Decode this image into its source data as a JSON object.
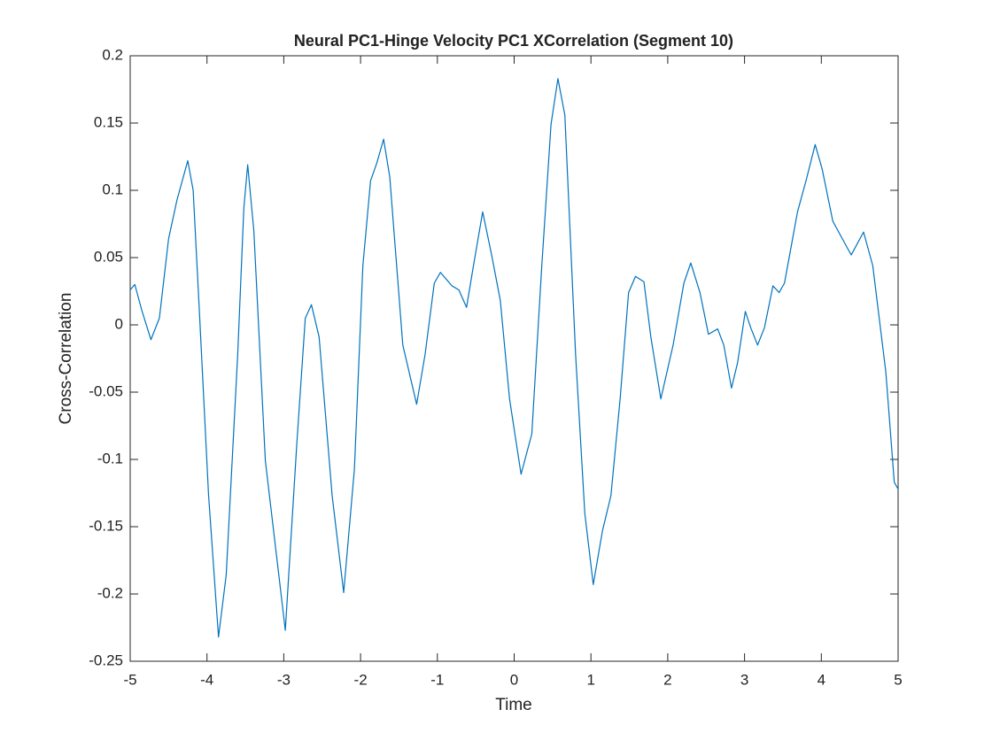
{
  "chart_data": {
    "type": "line",
    "title": "Neural PC1-Hinge Velocity PC1 XCorrelation (Segment 10)",
    "x_label": "Time",
    "y_label": "Cross-Correlation",
    "x": [
      -5.0,
      -4.94,
      -4.85,
      -4.73,
      -4.62,
      -4.5,
      -4.39,
      -4.25,
      -4.18,
      -4.1,
      -3.98,
      -3.85,
      -3.75,
      -3.6,
      -3.52,
      -3.47,
      -3.39,
      -3.24,
      -2.98,
      -2.83,
      -2.72,
      -2.64,
      -2.54,
      -2.37,
      -2.22,
      -2.08,
      -1.97,
      -1.87,
      -1.79,
      -1.7,
      -1.62,
      -1.45,
      -1.27,
      -1.16,
      -1.04,
      -0.96,
      -0.81,
      -0.72,
      -0.62,
      -0.53,
      -0.41,
      -0.29,
      -0.18,
      -0.06,
      0.09,
      0.23,
      0.36,
      0.48,
      0.57,
      0.66,
      0.8,
      0.92,
      1.03,
      1.15,
      1.26,
      1.38,
      1.49,
      1.58,
      1.69,
      1.78,
      1.91,
      2.07,
      2.21,
      2.3,
      2.42,
      2.53,
      2.65,
      2.73,
      2.83,
      2.91,
      3.01,
      3.08,
      3.17,
      3.26,
      3.37,
      3.45,
      3.52,
      3.69,
      3.8,
      3.92,
      4.01,
      4.15,
      4.35,
      4.39,
      4.55,
      4.67,
      4.84,
      4.95,
      5.0
    ],
    "series": [
      {
        "color": "#0072bd",
        "values": [
          0.026,
          0.03,
          0.011,
          -0.011,
          0.005,
          0.064,
          0.093,
          0.122,
          0.1,
          0.011,
          -0.126,
          -0.232,
          -0.186,
          -0.022,
          0.087,
          0.119,
          0.07,
          -0.101,
          -0.227,
          -0.088,
          0.005,
          0.015,
          -0.009,
          -0.127,
          -0.199,
          -0.107,
          0.044,
          0.107,
          0.12,
          0.138,
          0.11,
          -0.015,
          -0.059,
          -0.022,
          0.031,
          0.039,
          0.029,
          0.026,
          0.013,
          0.044,
          0.084,
          0.051,
          0.018,
          -0.055,
          -0.111,
          -0.081,
          0.044,
          0.149,
          0.183,
          0.156,
          -0.022,
          -0.14,
          -0.193,
          -0.153,
          -0.127,
          -0.055,
          0.024,
          0.036,
          0.032,
          -0.009,
          -0.055,
          -0.015,
          0.031,
          0.046,
          0.024,
          -0.007,
          -0.003,
          -0.015,
          -0.047,
          -0.028,
          0.01,
          -0.002,
          -0.015,
          -0.002,
          0.029,
          0.024,
          0.031,
          0.084,
          0.107,
          0.134,
          0.116,
          0.077,
          0.056,
          0.052,
          0.069,
          0.044,
          -0.035,
          -0.117,
          -0.122
        ]
      }
    ],
    "xlim": [
      -5,
      5
    ],
    "xticks": [
      -5,
      -4,
      -3,
      -2,
      -1,
      0,
      1,
      2,
      3,
      4,
      5
    ],
    "ylim": [
      -0.25,
      0.2
    ],
    "yticks": [
      -0.25,
      -0.2,
      -0.15,
      -0.1,
      -0.05,
      0,
      0.05,
      0.1,
      0.15,
      0.2
    ]
  }
}
